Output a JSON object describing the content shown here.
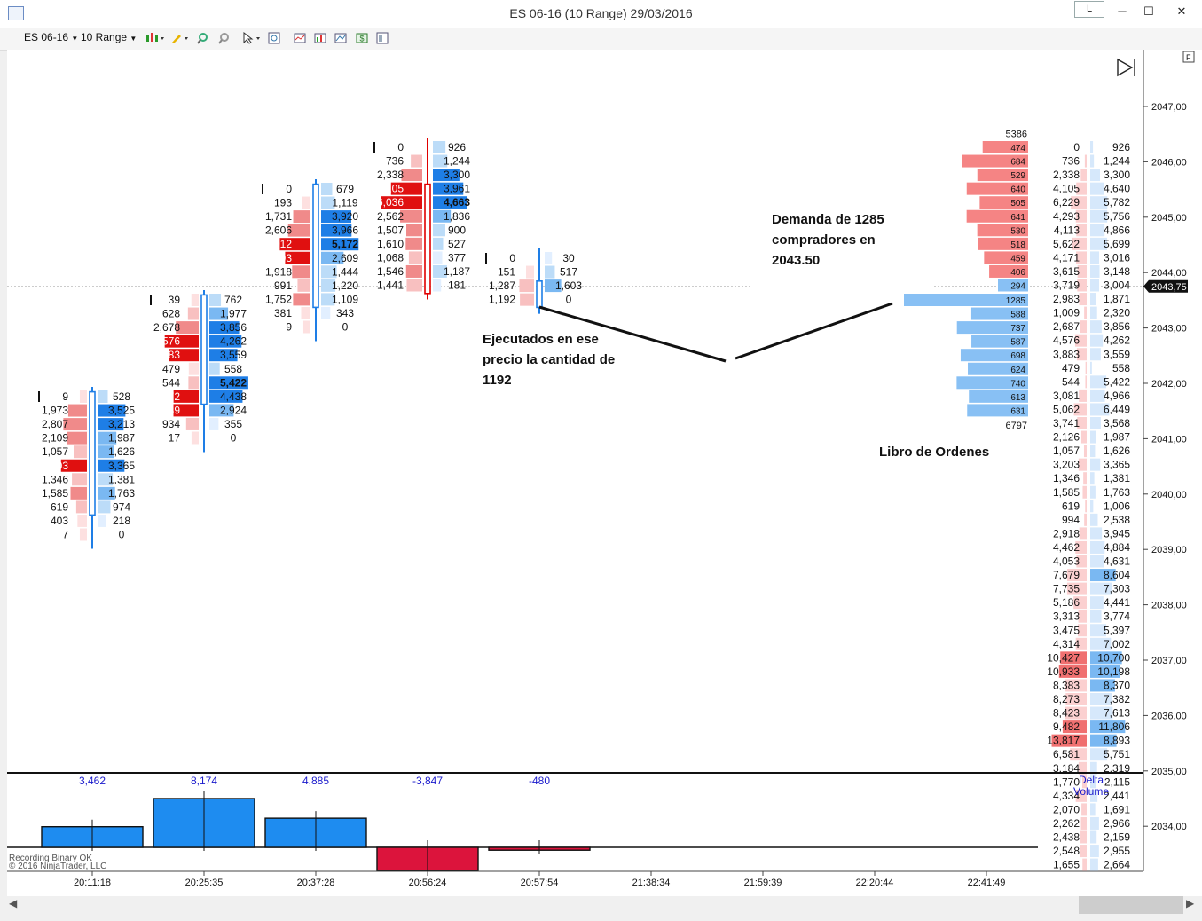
{
  "window": {
    "title": "ES 06-16 (10 Range)  29/03/2016",
    "l_button": "L",
    "minimize": "─",
    "maximize": "☐",
    "close": "✕"
  },
  "toolbar": {
    "instrument": "ES 06-16",
    "period": "10 Range"
  },
  "chart": {
    "f_button": "F",
    "price_axis": [
      "2047,00",
      "2046,00",
      "2045,00",
      "2044,00",
      "2043,00",
      "2042,00",
      "2041,00",
      "2040,00",
      "2039,00",
      "2038,00",
      "2037,00",
      "2036,00",
      "2035,00",
      "2034,00"
    ],
    "current_price": "2043,75",
    "time_labels": [
      "20:11:18",
      "20:25:35",
      "20:37:28",
      "20:56:24",
      "20:57:54",
      "21:38:34",
      "21:59:39",
      "22:20:44",
      "22:41:49"
    ],
    "footer_line1": "Recording Binary OK",
    "footer_line2": "© 2016 NinjaTrader, LLC",
    "delta_volume_label_1": "Delta",
    "delta_volume_label_2": "Volume"
  },
  "annotations": {
    "demand": [
      "Demanda de 1285",
      "compradores en",
      "2043.50"
    ],
    "executed": [
      "Ejecutados en ese",
      "precio la cantidad de",
      "1192"
    ],
    "book": "Libro de Ordenes"
  },
  "chart_data": {
    "type": "footprint",
    "columns": [
      {
        "time": "20:11:18",
        "open": 2041.75,
        "close": 2039.75,
        "delta_label": "3,462",
        "delta": 3462,
        "rows": [
          [
            "9",
            "528"
          ],
          [
            "1,973",
            "3,525"
          ],
          [
            "2,807",
            "3,213"
          ],
          [
            "2,109",
            "1,987"
          ],
          [
            "1,057",
            "1,626"
          ],
          [
            "3,203",
            "3,365"
          ],
          [
            "1,346",
            "1,381"
          ],
          [
            "1,585",
            "1,763"
          ],
          [
            "619",
            "974"
          ],
          [
            "403",
            "218"
          ],
          [
            "7",
            "0"
          ]
        ]
      },
      {
        "time": "20:25:35",
        "open": 2043.5,
        "close": 2041.75,
        "delta_label": "8,174",
        "delta": 8174,
        "rows": [
          [
            "39",
            "762"
          ],
          [
            "628",
            "1,977"
          ],
          [
            "2,678",
            "3,856"
          ],
          [
            "4,576",
            "4,262"
          ],
          [
            "3,883",
            "3,559"
          ],
          [
            "479",
            "558"
          ],
          [
            "544",
            "5,422"
          ],
          [
            "3,072",
            "4,438"
          ],
          [
            "3,089",
            "2,924"
          ],
          [
            "934",
            "355"
          ],
          [
            "17",
            "0"
          ]
        ]
      },
      {
        "time": "20:37:28",
        "open": 2045.5,
        "close": 2043.5,
        "delta_label": "4,885",
        "delta": 4885,
        "rows": [
          [
            "0",
            "679"
          ],
          [
            "193",
            "1,119"
          ],
          [
            "1,731",
            "3,920"
          ],
          [
            "2,606",
            "3,966"
          ],
          [
            "4,012",
            "5,172"
          ],
          [
            "3,103",
            "2,609"
          ],
          [
            "1,918",
            "1,444"
          ],
          [
            "991",
            "1,220"
          ],
          [
            "1,752",
            "1,109"
          ],
          [
            "381",
            "343"
          ],
          [
            "9",
            "0"
          ]
        ]
      },
      {
        "time": "20:56:24",
        "open": 2045.5,
        "close": 2043.75,
        "delta_label": "-3,847",
        "delta": -3847,
        "rows": [
          [
            "0",
            "926"
          ],
          [
            "736",
            "1,244"
          ],
          [
            "2,338",
            "3,300"
          ],
          [
            "4,105",
            "3,961"
          ],
          [
            "6,036",
            "4,663"
          ],
          [
            "2,562",
            "1,836"
          ],
          [
            "1,507",
            "900"
          ],
          [
            "1,610",
            "527"
          ],
          [
            "1,068",
            "377"
          ],
          [
            "1,546",
            "1,187"
          ],
          [
            "1,441",
            "181"
          ]
        ]
      },
      {
        "time": "20:57:54",
        "open": 2043.75,
        "close": 2043.5,
        "delta_label": "-480",
        "delta": -480,
        "rows": [
          [
            "0",
            "30"
          ],
          [
            "151",
            "517"
          ],
          [
            "1,287",
            "1,603"
          ],
          [
            "1,192",
            "0"
          ]
        ]
      }
    ],
    "order_book": {
      "ask_total": "5386",
      "bid_total": "6797",
      "asks": [
        "474",
        "684",
        "529",
        "640",
        "505",
        "641",
        "530",
        "518",
        "459",
        "406",
        "294"
      ],
      "bids": [
        "1285",
        "588",
        "737",
        "587",
        "698",
        "624",
        "740",
        "613",
        "631"
      ]
    },
    "profile": [
      [
        "0",
        "926"
      ],
      [
        "736",
        "1,244"
      ],
      [
        "2,338",
        "3,300"
      ],
      [
        "4,105",
        "4,640"
      ],
      [
        "6,229",
        "5,782"
      ],
      [
        "4,293",
        "5,756"
      ],
      [
        "4,113",
        "4,866"
      ],
      [
        "5,622",
        "5,699"
      ],
      [
        "4,171",
        "3,016"
      ],
      [
        "3,615",
        "3,148"
      ],
      [
        "3,719",
        "3,004"
      ],
      [
        "2,983",
        "1,871"
      ],
      [
        "1,009",
        "2,320"
      ],
      [
        "2,687",
        "3,856"
      ],
      [
        "4,576",
        "4,262"
      ],
      [
        "3,883",
        "3,559"
      ],
      [
        "479",
        "558"
      ],
      [
        "544",
        "5,422"
      ],
      [
        "3,081",
        "4,966"
      ],
      [
        "5,062",
        "6,449"
      ],
      [
        "3,741",
        "3,568"
      ],
      [
        "2,126",
        "1,987"
      ],
      [
        "1,057",
        "1,626"
      ],
      [
        "3,203",
        "3,365"
      ],
      [
        "1,346",
        "1,381"
      ],
      [
        "1,585",
        "1,763"
      ],
      [
        "619",
        "1,006"
      ],
      [
        "994",
        "2,538"
      ],
      [
        "2,918",
        "3,945"
      ],
      [
        "4,462",
        "4,884"
      ],
      [
        "4,053",
        "4,631"
      ],
      [
        "7,679",
        "8,604"
      ],
      [
        "7,735",
        "7,303"
      ],
      [
        "5,186",
        "4,441"
      ],
      [
        "3,313",
        "3,774"
      ],
      [
        "3,475",
        "5,397"
      ],
      [
        "4,314",
        "7,002"
      ],
      [
        "10,427",
        "10,700"
      ],
      [
        "10,933",
        "10,198"
      ],
      [
        "8,383",
        "8,370"
      ],
      [
        "8,273",
        "7,382"
      ],
      [
        "8,423",
        "7,613"
      ],
      [
        "9,482",
        "11,806"
      ],
      [
        "13,817",
        "8,893"
      ],
      [
        "6,581",
        "5,751"
      ],
      [
        "3,184",
        "2,319"
      ],
      [
        "1,770",
        "2,115"
      ],
      [
        "4,334",
        "2,441"
      ],
      [
        "2,070",
        "1,691"
      ],
      [
        "2,262",
        "2,966"
      ],
      [
        "2,438",
        "2,159"
      ],
      [
        "2,548",
        "2,955"
      ],
      [
        "1,655",
        "2,664"
      ]
    ]
  }
}
